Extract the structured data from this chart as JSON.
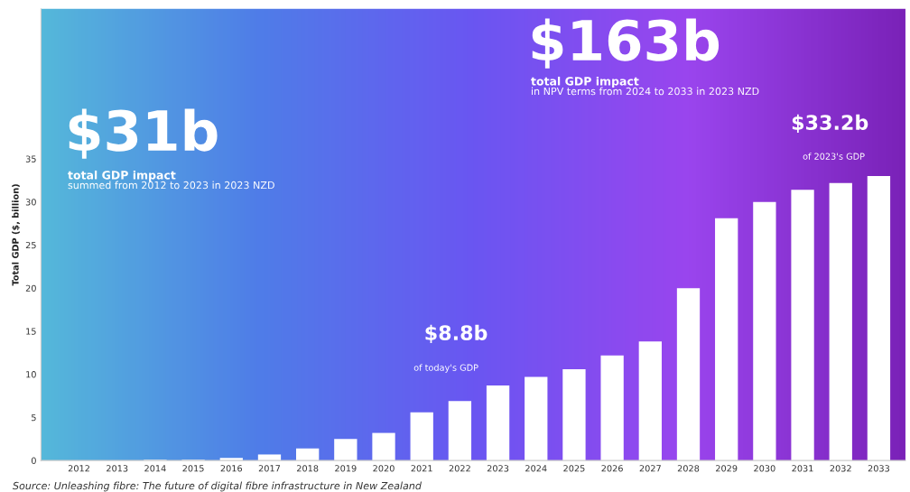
{
  "chart_data": {
    "type": "bar",
    "ylabel": "Total GDP ($, billion)",
    "categories": [
      "2012",
      "2013",
      "2014",
      "2015",
      "2016",
      "2017",
      "2018",
      "2019",
      "2020",
      "2021",
      "2022",
      "2023",
      "2024",
      "2025",
      "2026",
      "2027",
      "2028",
      "2029",
      "2030",
      "2031",
      "2032",
      "2033"
    ],
    "values": [
      0,
      0,
      0.1,
      0.1,
      0.3,
      0.7,
      1.4,
      2.5,
      3.2,
      5.6,
      6.9,
      8.7,
      9.7,
      10.6,
      12.2,
      13.8,
      20.0,
      28.1,
      30.0,
      31.4,
      32.2,
      33.0
    ],
    "color": "#ffffff",
    "ylim": [
      0,
      52.4
    ],
    "yticks": [
      0,
      5,
      10,
      15,
      20,
      25,
      30,
      35
    ],
    "grid": false,
    "legend": false,
    "annotations": [
      "$31b",
      "total GDP impact",
      "summed from 2012 to 2023 in 2023 NZD",
      "$163b",
      "total GDP impact",
      "in NPV terms from 2024 to 2033 in 2023 NZD",
      {
        "text": "$8.8b",
        "x": "2023",
        "y": 8.8
      },
      "of today's GDP",
      {
        "text": "$33.2b",
        "x": "2033",
        "y": 33.2
      },
      "of 2023's GDP",
      "Source: Unleashing fibre: The future of digital fibre infrastructure in New Zealand"
    ]
  }
}
